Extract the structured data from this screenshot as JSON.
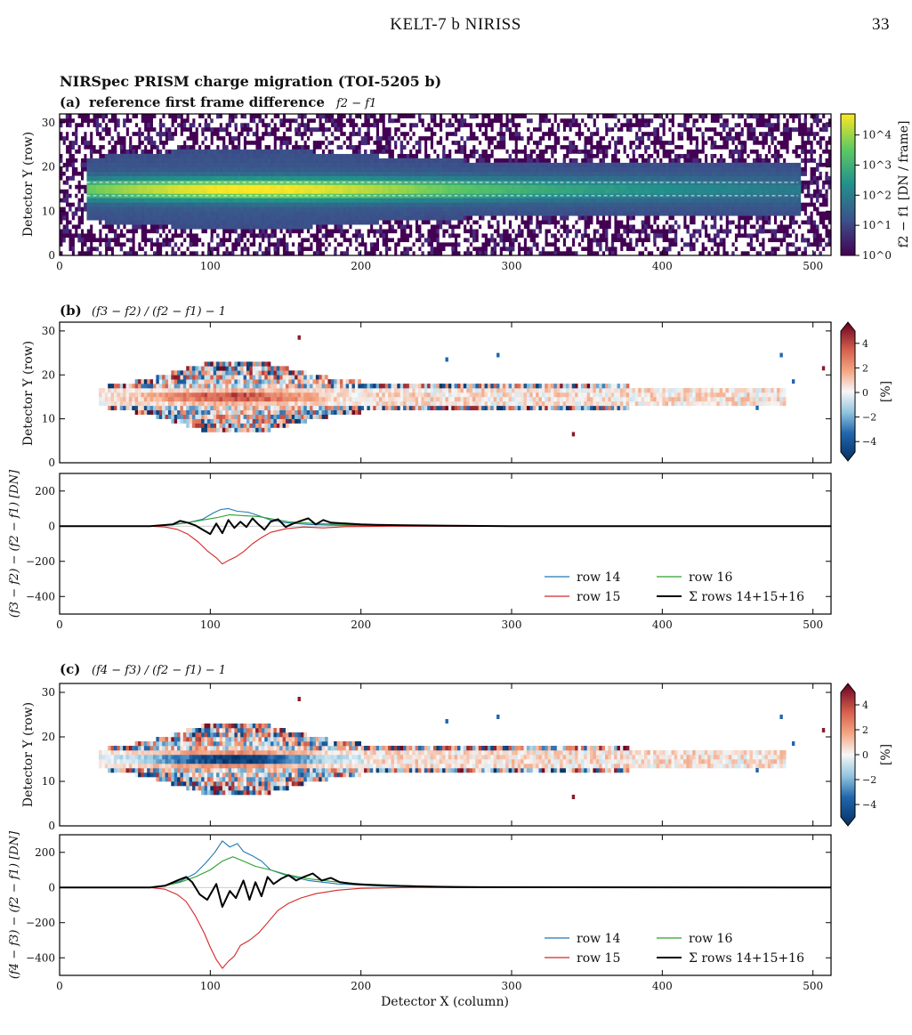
{
  "page": {
    "running_title": "KELT-7 b NIRISS",
    "page_number": "33"
  },
  "figure_title": "NIRSpec PRISM charge migration (TOI-5205 b)",
  "chart_data": [
    {
      "id": "a",
      "type": "heatmap",
      "panel_label": "(a)",
      "title": "reference first frame difference",
      "title_math": "f2 − f1",
      "ylabel": "Detector Y (row)",
      "xlim": [
        0,
        512
      ],
      "ylim": [
        0,
        32
      ],
      "xticks": [
        0,
        100,
        200,
        300,
        400,
        500
      ],
      "yticks": [
        0,
        10,
        20,
        30
      ],
      "colormap": "viridis",
      "color_scale": "log",
      "colorbar": {
        "label": "f2 − f1  [DN / frame]",
        "ticks": [
          "10^0",
          "10^1",
          "10^2",
          "10^3",
          "10^4"
        ],
        "range": [
          1,
          50000
        ]
      },
      "trace": {
        "center_row": 15,
        "x_start": 18,
        "x_end": 490,
        "peak_column": 110
      },
      "reference_rows_dashed": [
        13.5,
        16.5
      ]
    },
    {
      "id": "b",
      "type": "heatmap",
      "panel_label": "(b)",
      "title_math": "(f3 − f2) / (f2 − f1) − 1",
      "ylabel": "Detector Y (row)",
      "xlim": [
        0,
        512
      ],
      "ylim": [
        0,
        32
      ],
      "yticks": [
        0,
        10,
        20,
        30
      ],
      "colormap": "RdBu_r",
      "colorbar": {
        "label": "[%]",
        "ticks": [
          "4",
          "2",
          "0",
          "−2",
          "−4"
        ],
        "range": [
          -5,
          5
        ]
      }
    },
    {
      "id": "b_profile",
      "type": "line",
      "ylabel": "(f3 − f2) − (f2 − f1)  [DN]",
      "xlim": [
        0,
        512
      ],
      "ylim": [
        -500,
        300
      ],
      "xticks": [
        0,
        100,
        200,
        300,
        400,
        500
      ],
      "yticks": [
        200,
        0,
        -200,
        -400
      ],
      "ytick_labels": [
        "200",
        "0",
        "−200",
        "−400"
      ],
      "legend_position": "lower-right",
      "series": [
        {
          "name": "row 14",
          "color": "#1f77b4",
          "points": [
            [
              0,
              0
            ],
            [
              60,
              0
            ],
            [
              75,
              8
            ],
            [
              85,
              20
            ],
            [
              95,
              40
            ],
            [
              102,
              75
            ],
            [
              107,
              95
            ],
            [
              112,
              100
            ],
            [
              118,
              85
            ],
            [
              125,
              80
            ],
            [
              132,
              60
            ],
            [
              140,
              35
            ],
            [
              150,
              20
            ],
            [
              165,
              10
            ],
            [
              185,
              5
            ],
            [
              215,
              3
            ],
            [
              260,
              0
            ],
            [
              512,
              0
            ]
          ]
        },
        {
          "name": "row 16",
          "color": "#2ca02c",
          "points": [
            [
              0,
              0
            ],
            [
              60,
              0
            ],
            [
              75,
              10
            ],
            [
              85,
              20
            ],
            [
              95,
              35
            ],
            [
              105,
              50
            ],
            [
              113,
              65
            ],
            [
              122,
              60
            ],
            [
              132,
              55
            ],
            [
              142,
              40
            ],
            [
              152,
              25
            ],
            [
              170,
              15
            ],
            [
              195,
              8
            ],
            [
              230,
              4
            ],
            [
              280,
              0
            ],
            [
              512,
              0
            ]
          ]
        },
        {
          "name": "row 15",
          "color": "#d62728",
          "points": [
            [
              0,
              0
            ],
            [
              60,
              0
            ],
            [
              70,
              -5
            ],
            [
              78,
              -18
            ],
            [
              85,
              -45
            ],
            [
              92,
              -90
            ],
            [
              98,
              -140
            ],
            [
              104,
              -180
            ],
            [
              108,
              -215
            ],
            [
              112,
              -195
            ],
            [
              117,
              -175
            ],
            [
              122,
              -145
            ],
            [
              128,
              -100
            ],
            [
              134,
              -65
            ],
            [
              140,
              -35
            ],
            [
              150,
              -15
            ],
            [
              162,
              -5
            ],
            [
              175,
              -10
            ],
            [
              190,
              -3
            ],
            [
              220,
              0
            ],
            [
              512,
              0
            ]
          ]
        },
        {
          "name": "Σ rows 14+15+16",
          "color": "#000000",
          "points": [
            [
              0,
              0
            ],
            [
              60,
              0
            ],
            [
              75,
              10
            ],
            [
              80,
              30
            ],
            [
              85,
              20
            ],
            [
              90,
              5
            ],
            [
              95,
              -20
            ],
            [
              100,
              -45
            ],
            [
              104,
              15
            ],
            [
              108,
              -40
            ],
            [
              112,
              35
            ],
            [
              116,
              -10
            ],
            [
              120,
              25
            ],
            [
              124,
              -5
            ],
            [
              128,
              45
            ],
            [
              132,
              10
            ],
            [
              136,
              -20
            ],
            [
              140,
              25
            ],
            [
              145,
              40
            ],
            [
              150,
              -5
            ],
            [
              155,
              15
            ],
            [
              160,
              30
            ],
            [
              165,
              45
            ],
            [
              170,
              10
            ],
            [
              175,
              35
            ],
            [
              180,
              20
            ],
            [
              190,
              15
            ],
            [
              200,
              10
            ],
            [
              210,
              8
            ],
            [
              230,
              5
            ],
            [
              260,
              3
            ],
            [
              300,
              0
            ],
            [
              512,
              0
            ]
          ]
        }
      ]
    },
    {
      "id": "c",
      "type": "heatmap",
      "panel_label": "(c)",
      "title_math": "(f4 − f3) / (f2 − f1) − 1",
      "ylabel": "Detector Y (row)",
      "xlim": [
        0,
        512
      ],
      "ylim": [
        0,
        32
      ],
      "yticks": [
        0,
        10,
        20,
        30
      ],
      "colormap": "RdBu_r",
      "colorbar": {
        "label": "[%]",
        "ticks": [
          "4",
          "2",
          "0",
          "−2",
          "−4"
        ],
        "range": [
          -5,
          5
        ]
      }
    },
    {
      "id": "c_profile",
      "type": "line",
      "xlabel": "Detector X (column)",
      "ylabel": "(f4 − f3) − (f2 − f1)  [DN]",
      "xlim": [
        0,
        512
      ],
      "ylim": [
        -500,
        300
      ],
      "xticks": [
        0,
        100,
        200,
        300,
        400,
        500
      ],
      "yticks": [
        200,
        0,
        -200,
        -400
      ],
      "ytick_labels": [
        "200",
        "0",
        "−200",
        "−400"
      ],
      "legend_position": "lower-right",
      "series": [
        {
          "name": "row 14",
          "color": "#1f77b4",
          "points": [
            [
              0,
              0
            ],
            [
              60,
              0
            ],
            [
              70,
              12
            ],
            [
              80,
              35
            ],
            [
              90,
              80
            ],
            [
              97,
              140
            ],
            [
              103,
              200
            ],
            [
              108,
              265
            ],
            [
              113,
              230
            ],
            [
              118,
              250
            ],
            [
              122,
              205
            ],
            [
              128,
              180
            ],
            [
              134,
              150
            ],
            [
              140,
              100
            ],
            [
              150,
              70
            ],
            [
              165,
              40
            ],
            [
              185,
              20
            ],
            [
              215,
              8
            ],
            [
              260,
              0
            ],
            [
              512,
              0
            ]
          ]
        },
        {
          "name": "row 16",
          "color": "#2ca02c",
          "points": [
            [
              0,
              0
            ],
            [
              60,
              0
            ],
            [
              70,
              10
            ],
            [
              80,
              30
            ],
            [
              90,
              60
            ],
            [
              100,
              100
            ],
            [
              108,
              150
            ],
            [
              115,
              175
            ],
            [
              122,
              150
            ],
            [
              130,
              120
            ],
            [
              140,
              100
            ],
            [
              150,
              75
            ],
            [
              165,
              50
            ],
            [
              180,
              35
            ],
            [
              200,
              20
            ],
            [
              230,
              10
            ],
            [
              270,
              3
            ],
            [
              512,
              0
            ]
          ]
        },
        {
          "name": "row 15",
          "color": "#d62728",
          "points": [
            [
              0,
              0
            ],
            [
              60,
              0
            ],
            [
              70,
              -10
            ],
            [
              78,
              -40
            ],
            [
              84,
              -80
            ],
            [
              90,
              -160
            ],
            [
              96,
              -260
            ],
            [
              100,
              -340
            ],
            [
              104,
              -410
            ],
            [
              108,
              -460
            ],
            [
              112,
              -420
            ],
            [
              116,
              -390
            ],
            [
              120,
              -330
            ],
            [
              126,
              -300
            ],
            [
              132,
              -260
            ],
            [
              138,
              -200
            ],
            [
              145,
              -130
            ],
            [
              152,
              -90
            ],
            [
              160,
              -60
            ],
            [
              170,
              -35
            ],
            [
              185,
              -15
            ],
            [
              200,
              -5
            ],
            [
              230,
              0
            ],
            [
              512,
              0
            ]
          ]
        },
        {
          "name": "Σ rows 14+15+16",
          "color": "#000000",
          "points": [
            [
              0,
              0
            ],
            [
              60,
              0
            ],
            [
              70,
              10
            ],
            [
              78,
              40
            ],
            [
              84,
              60
            ],
            [
              88,
              30
            ],
            [
              93,
              -40
            ],
            [
              98,
              -70
            ],
            [
              104,
              20
            ],
            [
              108,
              -110
            ],
            [
              113,
              -20
            ],
            [
              117,
              -60
            ],
            [
              122,
              40
            ],
            [
              126,
              -70
            ],
            [
              130,
              30
            ],
            [
              134,
              -50
            ],
            [
              138,
              60
            ],
            [
              142,
              20
            ],
            [
              147,
              50
            ],
            [
              152,
              70
            ],
            [
              157,
              40
            ],
            [
              162,
              60
            ],
            [
              168,
              80
            ],
            [
              174,
              40
            ],
            [
              180,
              55
            ],
            [
              186,
              30
            ],
            [
              195,
              20
            ],
            [
              205,
              15
            ],
            [
              220,
              10
            ],
            [
              245,
              5
            ],
            [
              280,
              2
            ],
            [
              512,
              0
            ]
          ]
        }
      ]
    }
  ]
}
